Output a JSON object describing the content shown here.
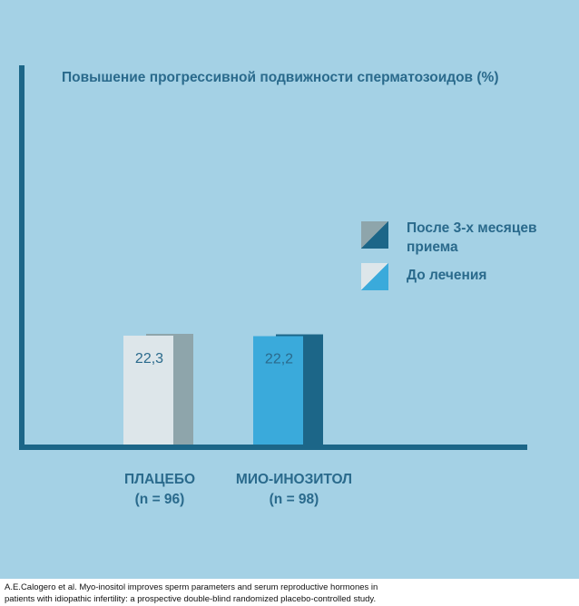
{
  "chart_data": {
    "type": "bar",
    "title": "Повышение прогрессивной подвижности сперматозоидов (%)",
    "categories": [
      "ПЛАЦЕБО",
      "МИО-ИНОЗИТОЛ"
    ],
    "category_sublabels": [
      "(n = 96)",
      "(n = 98)"
    ],
    "series": [
      {
        "name": "До лечения",
        "values": [
          22.3,
          22.2
        ],
        "value_labels": [
          "22,3",
          "22,2"
        ],
        "colors": [
          "#dde6ea",
          "#3aaadb"
        ]
      },
      {
        "name": "После 3-х месяцев приема",
        "values": [
          22.3,
          22.2
        ],
        "colors": [
          "#8ea5ab",
          "#1c6688"
        ]
      }
    ],
    "legend_placement": "right",
    "grid": false,
    "axis_color": "#1c6688"
  },
  "legend": {
    "after_label": "После 3-х месяцев приема",
    "before_label": "До лечения"
  },
  "caption": {
    "line1": "A.E.Calogero et al. Myo-inositol improves sperm parameters and serum reproductive hormones in",
    "line2": "patients with idiopathic infertility: a prospective double-blind randomized placebo-controlled study."
  },
  "colors": {
    "background": "#a4d1e5",
    "text": "#2a6a8c"
  }
}
